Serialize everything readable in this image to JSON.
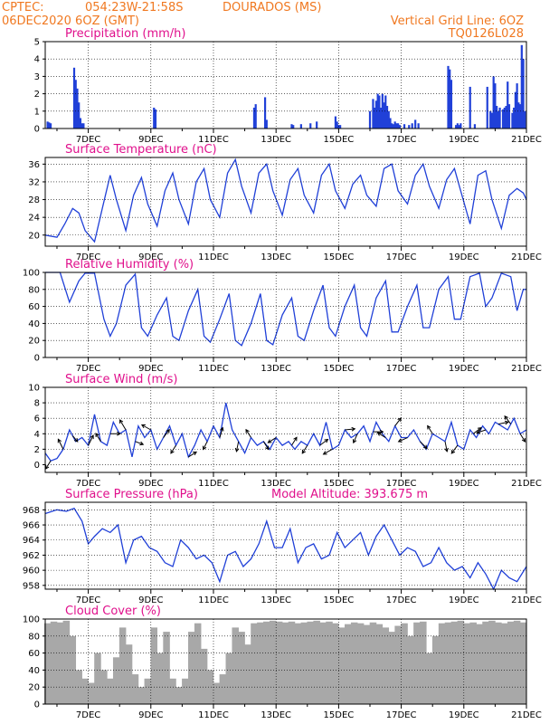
{
  "header": {
    "source": "CPTEC:",
    "coords": "054:23W-21:58S",
    "station": "DOURADOS (MS)",
    "run": "06DEC2020 6OZ (GMT)",
    "grid_note": "Vertical Grid Line: 6OZ",
    "model_code": "TQ0126L028"
  },
  "x_axis": {
    "tick_labels": [
      "7DEC",
      "9DEC",
      "11DEC",
      "13DEC",
      "15DEC",
      "17DEC",
      "19DEC",
      "21DEC"
    ],
    "tick_days": [
      1,
      3,
      5,
      7,
      9,
      11,
      13,
      15
    ],
    "range_days": [
      -0.375,
      15.0
    ]
  },
  "colors": {
    "line": "#2040d8",
    "bar": "#2040d8",
    "cloud": "#a8a8a8",
    "title": "#e0108c",
    "header": "#f07820"
  },
  "chart_data": [
    {
      "type": "bar",
      "title": "Precipitation (mm/h)",
      "ylim": [
        0,
        5
      ],
      "yticks": [
        0,
        1,
        2,
        3,
        4,
        5
      ],
      "x": [
        -0.3,
        -0.25,
        -0.2,
        0.55,
        0.6,
        0.65,
        0.7,
        0.75,
        0.8,
        0.85,
        3.1,
        3.15,
        6.3,
        6.35,
        6.65,
        6.7,
        7.5,
        7.55,
        7.8,
        8.1,
        8.3,
        8.9,
        8.95,
        9.0,
        9.05,
        10.0,
        10.1,
        10.15,
        10.2,
        10.25,
        10.3,
        10.35,
        10.4,
        10.45,
        10.5,
        10.55,
        10.6,
        10.65,
        10.7,
        10.75,
        10.8,
        10.85,
        10.9,
        10.95,
        11.1,
        11.25,
        11.35,
        11.45,
        11.55,
        12.5,
        12.55,
        12.6,
        12.75,
        12.8,
        12.85,
        12.9,
        13.2,
        13.35,
        13.75,
        13.85,
        13.9,
        13.95,
        14.0,
        14.05,
        14.1,
        14.15,
        14.25,
        14.3,
        14.35,
        14.4,
        14.45,
        14.55,
        14.6,
        14.65,
        14.7,
        14.75,
        14.8,
        14.85,
        14.9,
        14.95
      ],
      "values": [
        0.4,
        0.35,
        0.3,
        3.5,
        2.8,
        2.3,
        1.5,
        0.6,
        0.3,
        0.3,
        1.2,
        1.1,
        1.2,
        1.4,
        1.8,
        0.5,
        0.25,
        0.2,
        0.25,
        0.3,
        0.4,
        0.7,
        0.4,
        0.2,
        0.2,
        1.0,
        1.7,
        1.2,
        1.6,
        2.0,
        1.9,
        1.2,
        2.0,
        1.5,
        1.9,
        1.3,
        1.0,
        0.6,
        0.3,
        0.25,
        0.4,
        0.3,
        0.3,
        0.2,
        0.25,
        0.2,
        0.3,
        0.5,
        0.3,
        3.6,
        3.4,
        2.8,
        0.2,
        0.3,
        0.2,
        0.3,
        2.4,
        0.25,
        2.4,
        1.0,
        0.9,
        3.0,
        2.6,
        1.3,
        1.0,
        1.2,
        1.1,
        1.2,
        1.3,
        2.7,
        1.4,
        0.9,
        1.2,
        2.1,
        2.6,
        1.5,
        1.4,
        4.8,
        4.0,
        1.0
      ]
    },
    {
      "type": "line",
      "title": "Surface Temperature (nC)",
      "ylim": [
        17.5,
        37.5
      ],
      "yticks": [
        20,
        24,
        28,
        32,
        36
      ],
      "series": [
        {
          "x": [
            -0.375,
            0.0,
            0.25,
            0.5,
            0.7,
            0.9,
            1.2,
            1.45,
            1.7,
            1.9,
            2.2,
            2.45,
            2.7,
            2.9,
            3.2,
            3.45,
            3.7,
            3.9,
            4.2,
            4.45,
            4.7,
            4.9,
            5.2,
            5.45,
            5.7,
            5.9,
            6.2,
            6.45,
            6.7,
            6.9,
            7.2,
            7.45,
            7.7,
            7.9,
            8.2,
            8.45,
            8.7,
            8.9,
            9.2,
            9.45,
            9.7,
            9.9,
            10.2,
            10.45,
            10.7,
            10.9,
            11.2,
            11.45,
            11.7,
            11.9,
            12.2,
            12.45,
            12.7,
            12.9,
            13.2,
            13.45,
            13.7,
            13.9,
            14.2,
            14.45,
            14.7,
            14.9,
            15.0
          ],
          "values": [
            20.0,
            19.5,
            22.5,
            26.0,
            25.0,
            21.0,
            18.5,
            26.0,
            33.5,
            28.0,
            21.0,
            29.0,
            33.0,
            27.0,
            22.0,
            30.0,
            34.0,
            28.0,
            22.5,
            32.0,
            35.0,
            28.0,
            24.0,
            34.0,
            37.0,
            31.0,
            25.0,
            34.0,
            36.0,
            30.0,
            24.5,
            32.5,
            35.0,
            29.0,
            25.0,
            33.5,
            36.0,
            30.0,
            26.0,
            31.5,
            33.5,
            29.0,
            26.5,
            35.0,
            36.0,
            30.0,
            27.0,
            33.5,
            36.0,
            31.0,
            26.0,
            32.5,
            35.0,
            30.0,
            22.5,
            33.5,
            34.5,
            28.0,
            21.5,
            29.0,
            30.5,
            29.5,
            28.0
          ]
        }
      ]
    },
    {
      "type": "line",
      "title": "Relative Humidity (%)",
      "ylim": [
        0,
        100
      ],
      "yticks": [
        0,
        20,
        40,
        60,
        80,
        100
      ],
      "series": [
        {
          "x": [
            -0.375,
            0.1,
            0.4,
            0.7,
            0.9,
            1.2,
            1.5,
            1.7,
            1.9,
            2.2,
            2.5,
            2.7,
            2.9,
            3.2,
            3.5,
            3.7,
            3.9,
            4.2,
            4.5,
            4.7,
            4.9,
            5.2,
            5.5,
            5.7,
            5.9,
            6.2,
            6.5,
            6.7,
            6.9,
            7.2,
            7.5,
            7.7,
            7.9,
            8.2,
            8.5,
            8.7,
            8.9,
            9.2,
            9.5,
            9.7,
            9.9,
            10.2,
            10.5,
            10.7,
            10.9,
            11.2,
            11.5,
            11.7,
            11.9,
            12.2,
            12.5,
            12.7,
            12.9,
            13.2,
            13.5,
            13.7,
            13.9,
            14.2,
            14.5,
            14.7,
            14.9,
            15.0
          ],
          "values": [
            100,
            100,
            65,
            90,
            99,
            99,
            45,
            25,
            40,
            85,
            98,
            35,
            25,
            50,
            70,
            25,
            20,
            55,
            80,
            25,
            18,
            45,
            75,
            20,
            14,
            40,
            75,
            20,
            15,
            50,
            70,
            25,
            20,
            55,
            85,
            35,
            25,
            60,
            85,
            35,
            25,
            70,
            90,
            30,
            30,
            60,
            85,
            35,
            35,
            80,
            95,
            45,
            45,
            95,
            99,
            60,
            70,
            99,
            95,
            55,
            80,
            80
          ]
        }
      ]
    },
    {
      "type": "line",
      "title": "Surface Wind (m/s)",
      "ylim": [
        -1,
        10
      ],
      "yticks": [
        0,
        2,
        4,
        6,
        8,
        10
      ],
      "series": [
        {
          "x": [
            -0.375,
            -0.2,
            0.0,
            0.2,
            0.4,
            0.6,
            0.8,
            1.0,
            1.2,
            1.4,
            1.6,
            1.8,
            2.0,
            2.2,
            2.4,
            2.6,
            2.8,
            3.0,
            3.2,
            3.4,
            3.6,
            3.8,
            4.0,
            4.2,
            4.4,
            4.6,
            4.8,
            5.0,
            5.2,
            5.4,
            5.6,
            5.8,
            6.0,
            6.2,
            6.4,
            6.6,
            6.8,
            7.0,
            7.2,
            7.4,
            7.6,
            7.8,
            8.0,
            8.2,
            8.4,
            8.6,
            8.8,
            9.0,
            9.2,
            9.4,
            9.6,
            9.8,
            10.0,
            10.2,
            10.4,
            10.6,
            10.8,
            11.0,
            11.2,
            11.4,
            11.6,
            11.8,
            12.0,
            12.2,
            12.4,
            12.6,
            12.8,
            13.0,
            13.2,
            13.4,
            13.6,
            13.8,
            14.0,
            14.2,
            14.4,
            14.6,
            14.8,
            15.0
          ],
          "values": [
            1.5,
            0.5,
            0.8,
            2.0,
            4.5,
            3.0,
            3.5,
            2.5,
            6.5,
            3.0,
            2.5,
            5.5,
            4.0,
            4.5,
            1.0,
            5.0,
            3.5,
            4.5,
            2.0,
            3.5,
            5.0,
            2.5,
            4.0,
            1.0,
            2.5,
            4.5,
            3.0,
            5.0,
            3.5,
            8.0,
            4.5,
            3.0,
            1.5,
            3.5,
            2.5,
            3.0,
            2.0,
            3.5,
            2.5,
            3.0,
            2.0,
            3.0,
            2.5,
            4.0,
            2.5,
            5.5,
            2.0,
            2.5,
            4.5,
            3.5,
            4.0,
            5.0,
            3.0,
            5.5,
            4.0,
            3.0,
            5.0,
            3.5,
            3.5,
            4.5,
            3.0,
            2.0,
            4.0,
            3.5,
            3.0,
            5.5,
            2.5,
            2.0,
            4.5,
            3.5,
            5.0,
            4.0,
            5.5,
            5.0,
            4.5,
            6.0,
            4.0,
            4.5
          ]
        }
      ],
      "wind_arrows": [
        {
          "x": -0.2,
          "dx": -0.5,
          "dy": -0.8
        },
        {
          "x": 0.2,
          "dx": -0.5,
          "dy": 1
        },
        {
          "x": 0.5,
          "dx": 0.5,
          "dy": -0.6
        },
        {
          "x": 1.0,
          "dx": 0.5,
          "dy": 1
        },
        {
          "x": 1.4,
          "dx": -0.5,
          "dy": 0.8
        },
        {
          "x": 1.7,
          "dx": 1,
          "dy": 0
        },
        {
          "x": 2.2,
          "dx": -0.6,
          "dy": 1
        },
        {
          "x": 2.5,
          "dx": 0.8,
          "dy": -0.3
        },
        {
          "x": 3.0,
          "dx": -0.9,
          "dy": 0.5
        },
        {
          "x": 3.4,
          "dx": 0.6,
          "dy": 0.8
        },
        {
          "x": 3.8,
          "dx": -0.5,
          "dy": -0.8
        },
        {
          "x": 4.2,
          "dx": 0.8,
          "dy": 0.5
        },
        {
          "x": 4.8,
          "dx": -0.4,
          "dy": -0.8
        },
        {
          "x": 5.2,
          "dx": 0.3,
          "dy": 1
        },
        {
          "x": 5.8,
          "dx": -0.2,
          "dy": -1
        },
        {
          "x": 6.2,
          "dx": -0.5,
          "dy": 0.8
        },
        {
          "x": 6.6,
          "dx": 0.5,
          "dy": -0.8
        },
        {
          "x": 7.0,
          "dx": -0.8,
          "dy": -0.5
        },
        {
          "x": 7.5,
          "dx": 0.5,
          "dy": 0.8
        },
        {
          "x": 8.0,
          "dx": -0.5,
          "dy": -0.8
        },
        {
          "x": 8.4,
          "dx": 0.8,
          "dy": 0.6
        },
        {
          "x": 8.8,
          "dx": -0.9,
          "dy": -0.5
        },
        {
          "x": 9.2,
          "dx": 1,
          "dy": 0.1
        },
        {
          "x": 9.6,
          "dx": -0.4,
          "dy": -0.9
        },
        {
          "x": 10.1,
          "dx": 1,
          "dy": 0
        },
        {
          "x": 10.5,
          "dx": -0.8,
          "dy": 0.5
        },
        {
          "x": 10.8,
          "dx": 0.6,
          "dy": 0.8
        },
        {
          "x": 11.2,
          "dx": -0.9,
          "dy": -0.4
        },
        {
          "x": 11.6,
          "dx": 0.7,
          "dy": -0.7
        },
        {
          "x": 12.0,
          "dx": -0.5,
          "dy": 0.8
        },
        {
          "x": 12.4,
          "dx": 0.2,
          "dy": -1
        },
        {
          "x": 12.8,
          "dx": -0.6,
          "dy": -0.8
        },
        {
          "x": 13.3,
          "dx": 0.8,
          "dy": 0.6
        },
        {
          "x": 13.7,
          "dx": -0.9,
          "dy": -0.3
        },
        {
          "x": 14.1,
          "dx": 1,
          "dy": 0.2
        },
        {
          "x": 14.5,
          "dx": -0.6,
          "dy": 0.8
        },
        {
          "x": 14.8,
          "dx": 0.5,
          "dy": -0.8
        }
      ]
    },
    {
      "type": "line",
      "title": "Surface Pressure (hPa)",
      "annotation": "Model Altitude: 393.675 m",
      "ylim": [
        957.5,
        969
      ],
      "yticks": [
        958,
        960,
        962,
        964,
        966,
        968
      ],
      "series": [
        {
          "x": [
            -0.375,
            0.0,
            0.3,
            0.55,
            0.8,
            1.0,
            1.2,
            1.45,
            1.7,
            1.95,
            2.2,
            2.45,
            2.7,
            2.95,
            3.2,
            3.45,
            3.7,
            3.95,
            4.2,
            4.45,
            4.7,
            4.95,
            5.2,
            5.45,
            5.7,
            5.95,
            6.2,
            6.45,
            6.7,
            6.95,
            7.2,
            7.45,
            7.7,
            7.95,
            8.2,
            8.45,
            8.7,
            8.95,
            9.2,
            9.45,
            9.7,
            9.95,
            10.2,
            10.45,
            10.7,
            10.95,
            11.2,
            11.45,
            11.7,
            11.95,
            12.2,
            12.45,
            12.7,
            12.95,
            13.2,
            13.45,
            13.7,
            13.95,
            14.2,
            14.45,
            14.7,
            15.0
          ],
          "values": [
            967.5,
            968.0,
            967.8,
            968.2,
            966.5,
            963.5,
            964.5,
            965.5,
            965.0,
            966.0,
            961.0,
            964.0,
            964.5,
            963.0,
            962.5,
            961.0,
            960.5,
            964.0,
            963.0,
            961.5,
            962.0,
            961.0,
            958.5,
            962.0,
            962.5,
            960.5,
            961.5,
            963.5,
            966.5,
            963.0,
            963.0,
            965.5,
            961.0,
            963.0,
            963.5,
            961.5,
            962.0,
            965.0,
            963.0,
            964.0,
            965.0,
            962.0,
            964.5,
            966.0,
            964.0,
            962.0,
            963.0,
            962.5,
            960.5,
            961.0,
            963.0,
            961.0,
            960.0,
            960.5,
            959.0,
            961.0,
            959.5,
            957.5,
            960.0,
            959.0,
            958.5,
            960.5
          ]
        }
      ]
    },
    {
      "type": "bar",
      "title": "Cloud Cover (%)",
      "ylim": [
        0,
        100
      ],
      "yticks": [
        0,
        20,
        40,
        60,
        80,
        100
      ],
      "x": [
        -0.3,
        -0.1,
        0.1,
        0.3,
        0.5,
        0.7,
        0.9,
        1.1,
        1.3,
        1.5,
        1.7,
        1.9,
        2.1,
        2.3,
        2.5,
        2.7,
        2.9,
        3.1,
        3.3,
        3.5,
        3.7,
        3.9,
        4.1,
        4.3,
        4.5,
        4.7,
        4.9,
        5.1,
        5.3,
        5.5,
        5.7,
        5.9,
        6.1,
        6.3,
        6.5,
        6.7,
        6.9,
        7.1,
        7.3,
        7.5,
        7.7,
        7.9,
        8.1,
        8.3,
        8.5,
        8.7,
        8.9,
        9.1,
        9.3,
        9.5,
        9.7,
        9.9,
        10.1,
        10.3,
        10.5,
        10.7,
        10.9,
        11.1,
        11.3,
        11.5,
        11.7,
        11.9,
        12.1,
        12.3,
        12.5,
        12.7,
        12.9,
        13.1,
        13.3,
        13.5,
        13.7,
        13.9,
        14.1,
        14.3,
        14.5,
        14.7,
        14.9
      ],
      "values": [
        95,
        97,
        96,
        98,
        80,
        40,
        30,
        25,
        60,
        40,
        30,
        55,
        90,
        70,
        35,
        20,
        30,
        90,
        60,
        85,
        30,
        20,
        30,
        85,
        95,
        65,
        40,
        25,
        35,
        60,
        90,
        85,
        70,
        95,
        96,
        97,
        98,
        97,
        96,
        97,
        95,
        96,
        97,
        98,
        96,
        97,
        95,
        90,
        94,
        96,
        95,
        93,
        96,
        94,
        90,
        85,
        92,
        95,
        80,
        96,
        97,
        60,
        80,
        95,
        96,
        97,
        98,
        95,
        96,
        94,
        97,
        98,
        96,
        95,
        97,
        98,
        96
      ]
    }
  ]
}
